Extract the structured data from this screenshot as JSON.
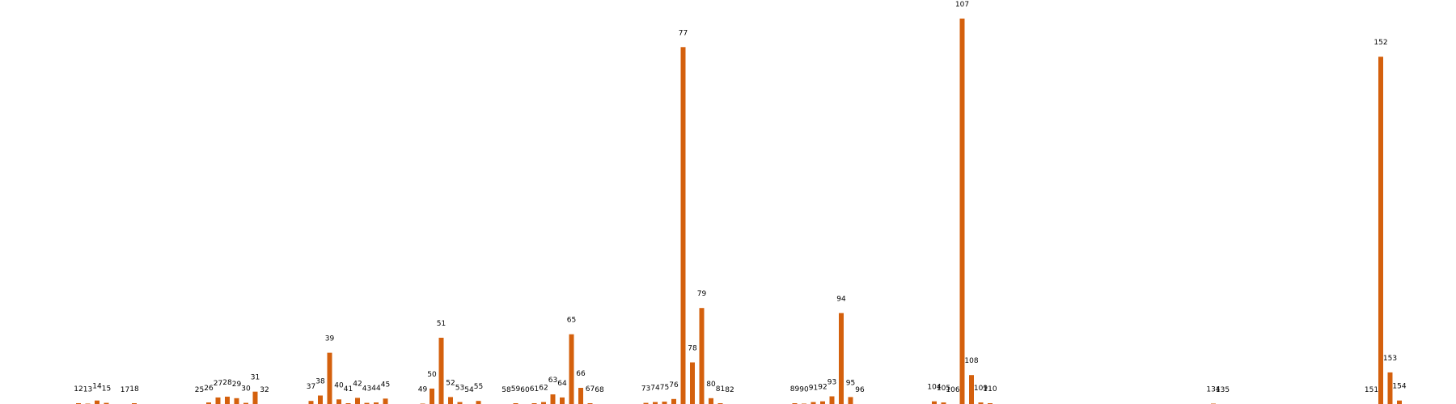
{
  "chart_data": {
    "type": "bar",
    "title": "",
    "xlabel": "",
    "ylabel": "",
    "grid": false,
    "axes_visible": false,
    "bar_color": "#d4600d",
    "ylim": [
      0,
      1.0
    ],
    "x": [
      12,
      13,
      14,
      15,
      17,
      18,
      25,
      26,
      27,
      28,
      29,
      30,
      31,
      32,
      37,
      38,
      39,
      40,
      41,
      42,
      43,
      44,
      45,
      49,
      50,
      51,
      52,
      53,
      54,
      55,
      58,
      59,
      60,
      61,
      62,
      63,
      64,
      65,
      66,
      67,
      68,
      73,
      74,
      75,
      76,
      77,
      78,
      79,
      80,
      81,
      82,
      89,
      90,
      91,
      92,
      93,
      94,
      95,
      96,
      104,
      105,
      106,
      107,
      108,
      109,
      110,
      134,
      135,
      151,
      152,
      153,
      154
    ],
    "labels": [
      "12",
      "13",
      "14",
      "15",
      "17",
      "18",
      "25",
      "26",
      "27",
      "28",
      "29",
      "30",
      "31",
      "32",
      "37",
      "38",
      "39",
      "40",
      "41",
      "42",
      "43",
      "44",
      "45",
      "49",
      "50",
      "51",
      "52",
      "53",
      "54",
      "55",
      "58",
      "59",
      "60",
      "61",
      "62",
      "63",
      "64",
      "65",
      "66",
      "67",
      "68",
      "73",
      "74",
      "75",
      "76",
      "77",
      "78",
      "79",
      "80",
      "81",
      "82",
      "89",
      "90",
      "91",
      "92",
      "93",
      "94",
      "95",
      "96",
      "104",
      "105",
      "106",
      "107",
      "108",
      "109",
      "110",
      "134",
      "135",
      "151",
      "152",
      "153",
      "154"
    ],
    "values": [
      0.002,
      0.001,
      0.009,
      0.003,
      0.0,
      0.002,
      0.0,
      0.004,
      0.017,
      0.019,
      0.015,
      0.003,
      0.032,
      0.0,
      0.008,
      0.022,
      0.133,
      0.012,
      0.002,
      0.016,
      0.003,
      0.004,
      0.014,
      0.001,
      0.04,
      0.172,
      0.018,
      0.005,
      0.0,
      0.008,
      0.0,
      0.002,
      0.0,
      0.002,
      0.005,
      0.025,
      0.017,
      0.181,
      0.042,
      0.002,
      0.0,
      0.003,
      0.005,
      0.006,
      0.013,
      0.926,
      0.108,
      0.249,
      0.015,
      0.002,
      0.0,
      0.002,
      0.001,
      0.005,
      0.007,
      0.02,
      0.236,
      0.018,
      0.0,
      0.007,
      0.004,
      0.0,
      1.0,
      0.075,
      0.004,
      0.002,
      0.001,
      0.0,
      0.0,
      0.901,
      0.082,
      0.009
    ]
  }
}
